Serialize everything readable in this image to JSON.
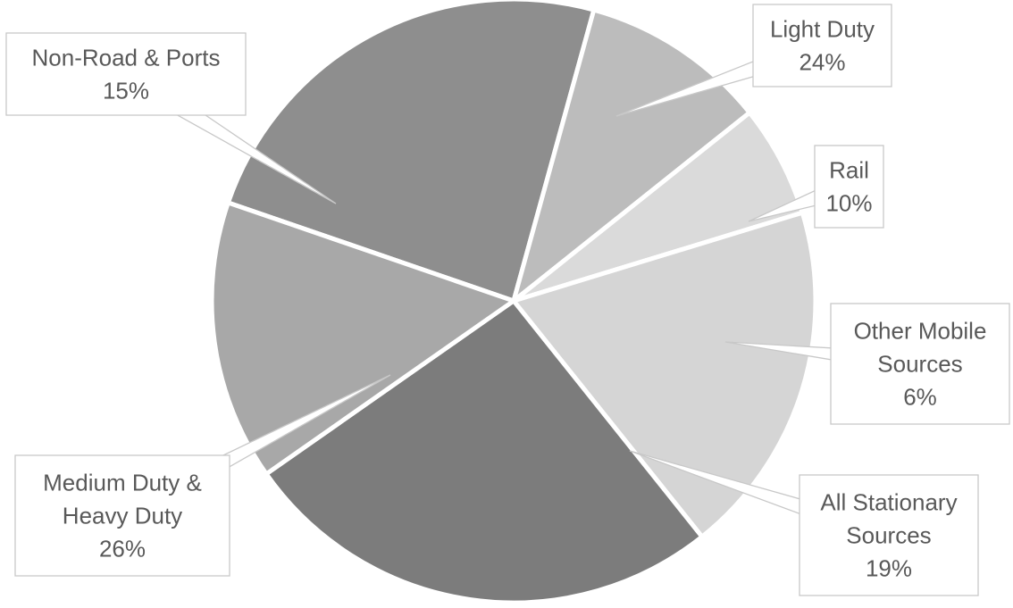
{
  "chart_data": {
    "type": "pie",
    "title": "",
    "start_angle_deg": -71,
    "direction": "clockwise",
    "slices": [
      {
        "label": [
          "Light Duty"
        ],
        "pct_label": "24%",
        "value": 24,
        "color": "#8e8e8e"
      },
      {
        "label": [
          "Rail"
        ],
        "pct_label": "10%",
        "value": 10,
        "color": "#bcbcbc"
      },
      {
        "label": [
          "Other Mobile",
          "Sources"
        ],
        "pct_label": "6%",
        "value": 6,
        "color": "#dadada"
      },
      {
        "label": [
          "All Stationary",
          "Sources"
        ],
        "pct_label": "19%",
        "value": 19,
        "color": "#d5d5d5"
      },
      {
        "label": [
          "Medium Duty &",
          "Heavy Duty"
        ],
        "pct_label": "26%",
        "value": 26,
        "color": "#7c7c7c"
      },
      {
        "label": [
          "Non-Road & Ports"
        ],
        "pct_label": "15%",
        "value": 15,
        "color": "#a8a8a8"
      }
    ]
  }
}
